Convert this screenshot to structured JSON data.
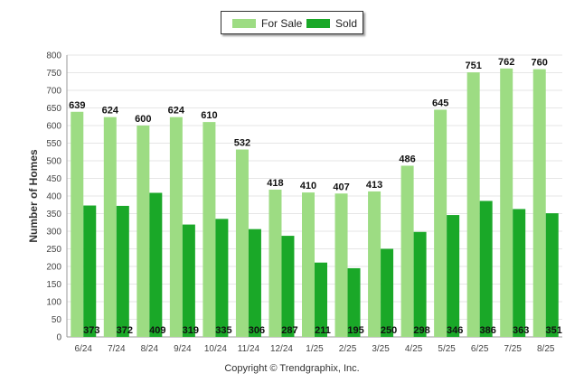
{
  "chart_data": {
    "type": "bar",
    "ylabel": "Number of Homes",
    "ylim": [
      0,
      800
    ],
    "yticks": [
      0,
      50,
      100,
      150,
      200,
      250,
      300,
      350,
      400,
      450,
      500,
      550,
      600,
      650,
      700,
      750,
      800
    ],
    "categories": [
      "6/24",
      "7/24",
      "8/24",
      "9/24",
      "10/24",
      "11/24",
      "12/24",
      "1/25",
      "2/25",
      "3/25",
      "4/25",
      "5/25",
      "6/25",
      "7/25",
      "8/25"
    ],
    "series": [
      {
        "name": "For Sale",
        "color": "#9ddc83",
        "values": [
          639,
          624,
          600,
          624,
          610,
          532,
          418,
          410,
          407,
          413,
          486,
          645,
          751,
          762,
          760
        ]
      },
      {
        "name": "Sold",
        "color": "#1aa828",
        "values": [
          373,
          372,
          409,
          319,
          335,
          306,
          287,
          211,
          195,
          250,
          298,
          346,
          386,
          363,
          351
        ]
      }
    ],
    "legend_position": "top-center",
    "grid": true
  },
  "footer": {
    "copyright": "Copyright © Trendgraphix, Inc."
  }
}
